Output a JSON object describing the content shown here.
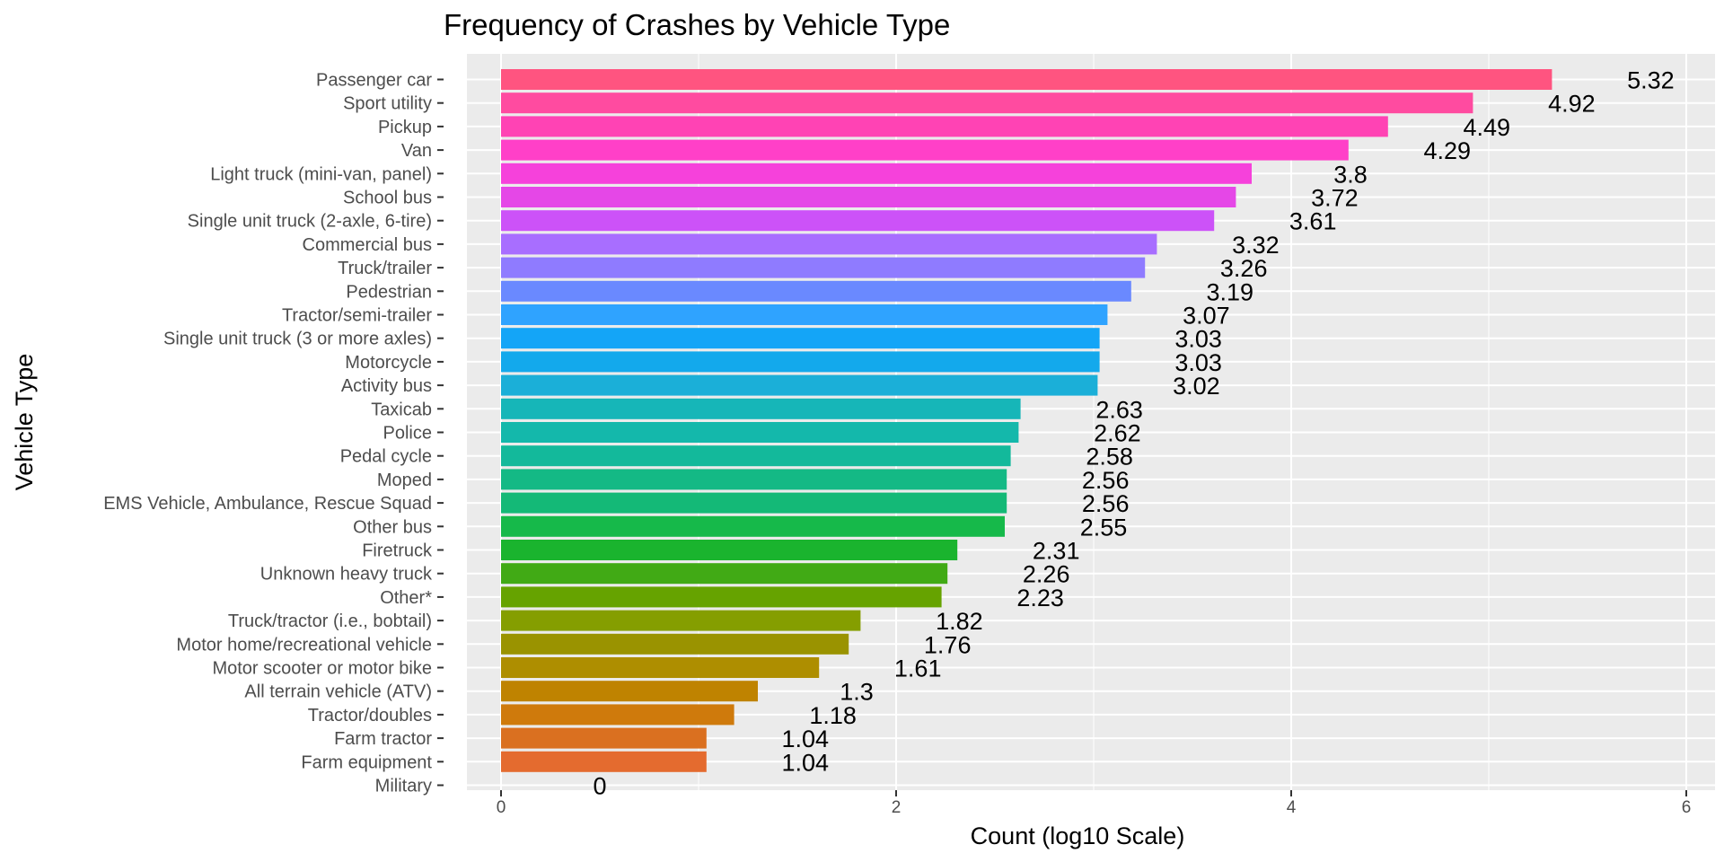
{
  "chart_data": {
    "type": "bar",
    "orientation": "horizontal",
    "title": "Frequency of Crashes by Vehicle Type",
    "xlabel": "Count (log10 Scale)",
    "ylabel": "Vehicle Type",
    "xlim": [
      -0.16,
      6.08
    ],
    "xticks": [
      0,
      2,
      4,
      6
    ],
    "x_tick_labels": [
      "0",
      "2",
      "4",
      "6"
    ],
    "grid": true,
    "legend": "none",
    "categories": [
      "Passenger car",
      "Sport utility",
      "Pickup",
      "Van",
      "Light truck (mini-van, panel)",
      "School bus",
      "Single unit truck (2-axle, 6-tire)",
      "Commercial bus",
      "Truck/trailer",
      "Pedestrian",
      "Tractor/semi-trailer",
      "Single unit truck (3 or more axles)",
      "Motorcycle",
      "Activity bus",
      "Taxicab",
      "Police",
      "Pedal cycle",
      "Moped",
      "EMS Vehicle, Ambulance, Rescue Squad",
      "Other bus",
      "Firetruck",
      "Unknown heavy truck",
      "Other*",
      "Truck/tractor (i.e., bobtail)",
      "Motor home/recreational vehicle",
      "Motor scooter or motor bike",
      "All terrain vehicle (ATV)",
      "Tractor/doubles",
      "Farm tractor",
      "Farm equipment",
      "Military"
    ],
    "values": [
      5.32,
      4.92,
      4.49,
      4.29,
      3.8,
      3.72,
      3.61,
      3.32,
      3.26,
      3.19,
      3.07,
      3.03,
      3.03,
      3.02,
      2.63,
      2.62,
      2.58,
      2.56,
      2.56,
      2.55,
      2.31,
      2.26,
      2.23,
      1.82,
      1.76,
      1.61,
      1.3,
      1.18,
      1.04,
      1.04,
      0
    ],
    "value_labels": [
      "5.32",
      "4.92",
      "4.49",
      "4.29",
      "3.8",
      "3.72",
      "3.61",
      "3.32",
      "3.26",
      "3.19",
      "3.07",
      "3.03",
      "3.03",
      "3.02",
      "2.63",
      "2.62",
      "2.58",
      "2.56",
      "2.56",
      "2.55",
      "2.31",
      "2.26",
      "2.23",
      "1.82",
      "1.76",
      "1.61",
      "1.3",
      "1.18",
      "1.04",
      "1.04",
      "0"
    ],
    "colors": [
      "#FF5480",
      "#FF4BA0",
      "#FF43B4",
      "#FF40C8",
      "#F641DB",
      "#E547E7",
      "#CC52F8",
      "#A86EFF",
      "#8F7BFF",
      "#6A89FF",
      "#2FA3FF",
      "#14A5F7",
      "#13A9EC",
      "#1BAFD8",
      "#16B6B8",
      "#14B8AB",
      "#13B99B",
      "#14B985",
      "#14B977",
      "#16B94A",
      "#1AB42E",
      "#41AA15",
      "#66A300",
      "#859E00",
      "#9A9300",
      "#AE8E00",
      "#BF8300",
      "#CF7A0C",
      "#DA7020",
      "#E46B2F",
      "#F0654A"
    ]
  }
}
